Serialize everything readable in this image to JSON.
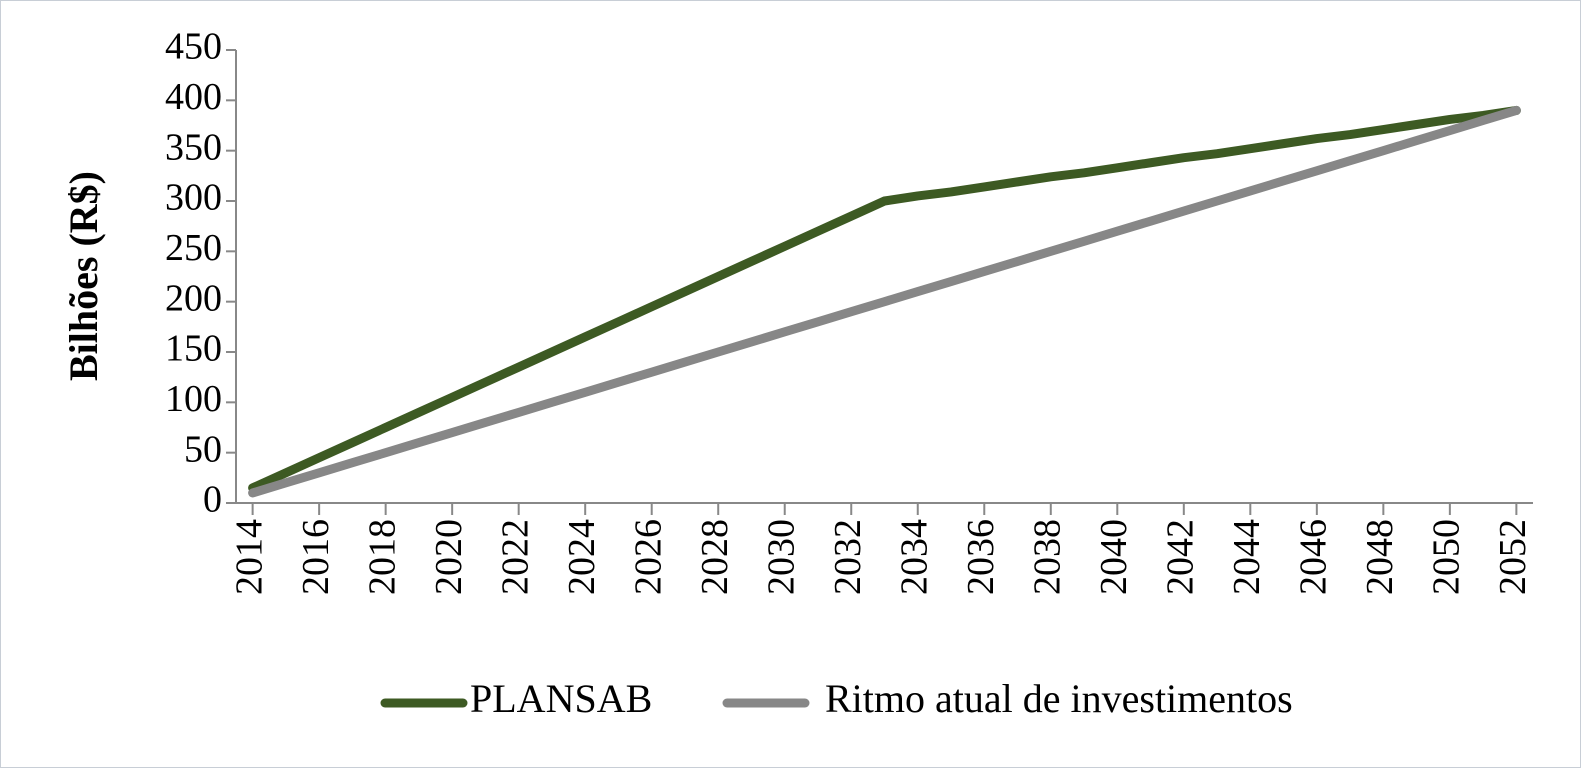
{
  "chart_data": {
    "type": "line",
    "y_label": "Bilhões (R$)",
    "x": [
      2014,
      2015,
      2016,
      2017,
      2018,
      2019,
      2020,
      2021,
      2022,
      2023,
      2024,
      2025,
      2026,
      2027,
      2028,
      2029,
      2030,
      2031,
      2032,
      2033,
      2034,
      2035,
      2036,
      2037,
      2038,
      2039,
      2040,
      2041,
      2042,
      2043,
      2044,
      2045,
      2046,
      2047,
      2048,
      2049,
      2050,
      2051,
      2052
    ],
    "series": [
      {
        "name": "PLANSAB",
        "color": "#3d5a23",
        "values": [
          15,
          30,
          45,
          60,
          75,
          90,
          105,
          120,
          135,
          150,
          165,
          180,
          195,
          210,
          225,
          240,
          255,
          270,
          285,
          300,
          305,
          309,
          314,
          319,
          324,
          328,
          333,
          338,
          343,
          347,
          352,
          357,
          362,
          366,
          371,
          376,
          381,
          385,
          390
        ]
      },
      {
        "name": "Ritmo atual de investimentos",
        "color": "#878787",
        "values": [
          10,
          20,
          30,
          40,
          50,
          60,
          70,
          80,
          90,
          100,
          110,
          120,
          130,
          140,
          150,
          160,
          170,
          180,
          190,
          200,
          210,
          220,
          230,
          240,
          250,
          260,
          270,
          280,
          290,
          300,
          310,
          320,
          330,
          340,
          350,
          360,
          370,
          380,
          390
        ]
      }
    ],
    "xlim": [
      2013.5,
      2052.5
    ],
    "xticks": [
      2014,
      2016,
      2018,
      2020,
      2022,
      2024,
      2026,
      2028,
      2030,
      2032,
      2034,
      2036,
      2038,
      2040,
      2042,
      2044,
      2046,
      2048,
      2050,
      2052
    ],
    "ylim": [
      0,
      450
    ],
    "yticks": [
      0,
      50,
      100,
      150,
      200,
      250,
      300,
      350,
      400,
      450
    ],
    "legend": "bottom"
  }
}
